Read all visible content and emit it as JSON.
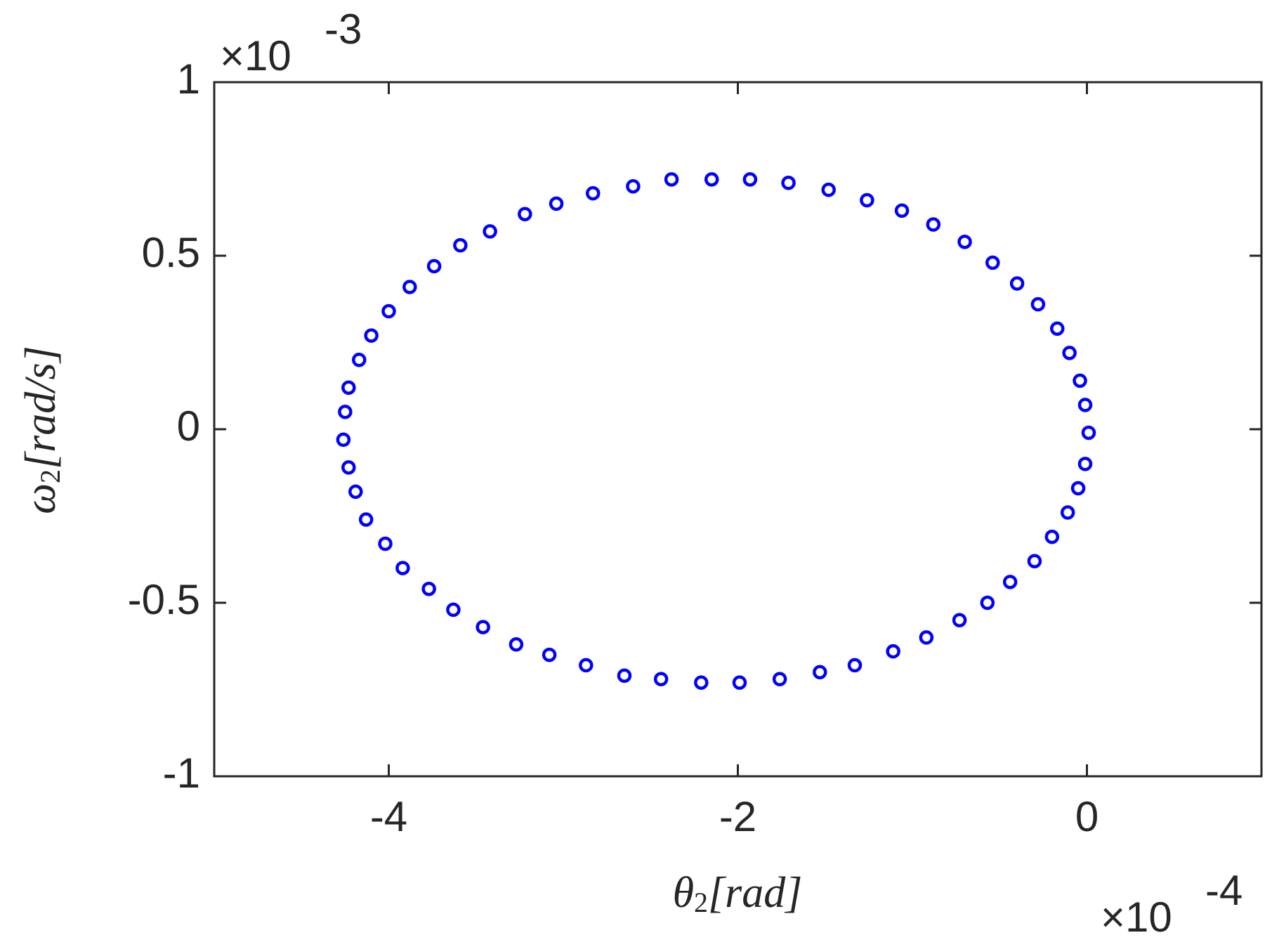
{
  "chart_data": {
    "type": "scatter",
    "xlabel": {
      "symbol": "θ",
      "subscript": "2",
      "unit": "[rad]"
    },
    "ylabel": {
      "symbol": "ω",
      "subscript": "2",
      "unit": "[rad/s]"
    },
    "x_multiplier": {
      "base": "×10",
      "exponent": "-4"
    },
    "y_multiplier": {
      "base": "×10",
      "exponent": "-3"
    },
    "xlim": [
      -5,
      1
    ],
    "xticks": [
      -4,
      -2,
      0
    ],
    "ylim": [
      -1,
      1
    ],
    "yticks": [
      -1,
      -0.5,
      0,
      0.5,
      1
    ],
    "color": "#0000ff",
    "marker": "circle",
    "x": [
      -2.15,
      -1.93,
      -1.71,
      -1.48,
      -1.26,
      -1.06,
      -0.88,
      -0.7,
      -0.54,
      -0.4,
      -0.28,
      -0.17,
      -0.1,
      -0.04,
      -0.01,
      0.01,
      -0.01,
      -0.05,
      -0.11,
      -0.2,
      -0.3,
      -0.44,
      -0.57,
      -0.73,
      -0.92,
      -1.11,
      -1.33,
      -1.53,
      -1.76,
      -1.99,
      -2.21,
      -2.44,
      -2.65,
      -2.87,
      -3.08,
      -3.27,
      -3.46,
      -3.63,
      -3.77,
      -3.92,
      -4.02,
      -4.13,
      -4.19,
      -4.23,
      -4.26,
      -4.25,
      -4.23,
      -4.17,
      -4.1,
      -4.0,
      -3.88,
      -3.74,
      -3.59,
      -3.42,
      -3.22,
      -3.04,
      -2.83,
      -2.6,
      -2.38
    ],
    "values": [
      0.72,
      0.72,
      0.71,
      0.69,
      0.66,
      0.63,
      0.59,
      0.54,
      0.48,
      0.42,
      0.36,
      0.29,
      0.22,
      0.14,
      0.07,
      -0.01,
      -0.1,
      -0.17,
      -0.24,
      -0.31,
      -0.38,
      -0.44,
      -0.5,
      -0.55,
      -0.6,
      -0.64,
      -0.68,
      -0.7,
      -0.72,
      -0.73,
      -0.73,
      -0.72,
      -0.71,
      -0.68,
      -0.65,
      -0.62,
      -0.57,
      -0.52,
      -0.46,
      -0.4,
      -0.33,
      -0.26,
      -0.18,
      -0.11,
      -0.03,
      0.05,
      0.12,
      0.2,
      0.27,
      0.34,
      0.41,
      0.47,
      0.53,
      0.57,
      0.62,
      0.65,
      0.68,
      0.7,
      0.72
    ]
  }
}
